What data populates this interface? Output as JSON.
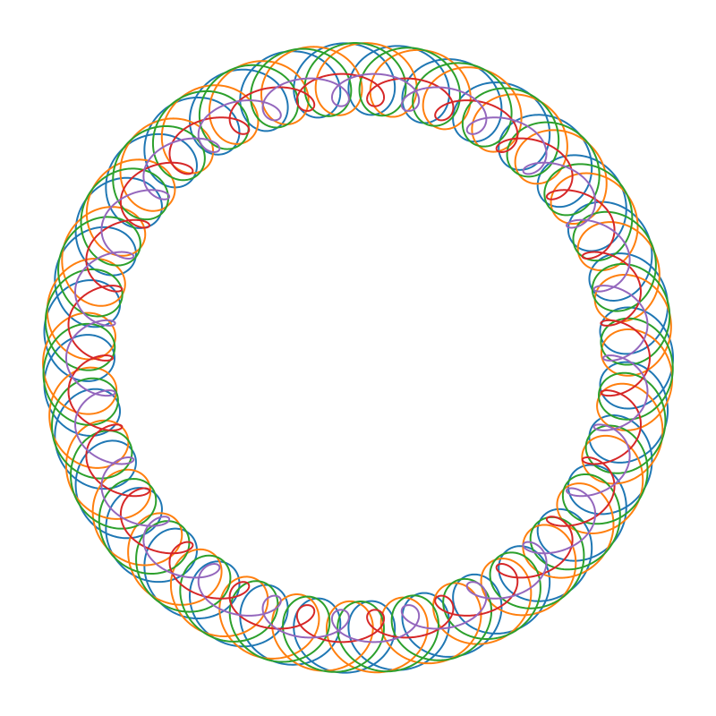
{
  "figure": {
    "description_type": "roulette-curves",
    "background": "#ffffff",
    "curves": [
      {
        "name": "blue-curve",
        "color": "#1f77b4",
        "loops": 32,
        "loop_style": "thin",
        "phase_deg": 0
      },
      {
        "name": "orange-curve",
        "color": "#ff7f0e",
        "loops": 32,
        "loop_style": "thin",
        "phase_deg": 4.5
      },
      {
        "name": "green-curve",
        "color": "#2ca02c",
        "loops": 32,
        "loop_style": "thin",
        "phase_deg": 2.25
      },
      {
        "name": "red-curve",
        "color": "#d62728",
        "loops": 24,
        "loop_style": "round",
        "phase_deg": 0
      },
      {
        "name": "purple-curve",
        "color": "#9467bd",
        "loops": 24,
        "loop_style": "round",
        "phase_deg": 7.5
      }
    ]
  }
}
